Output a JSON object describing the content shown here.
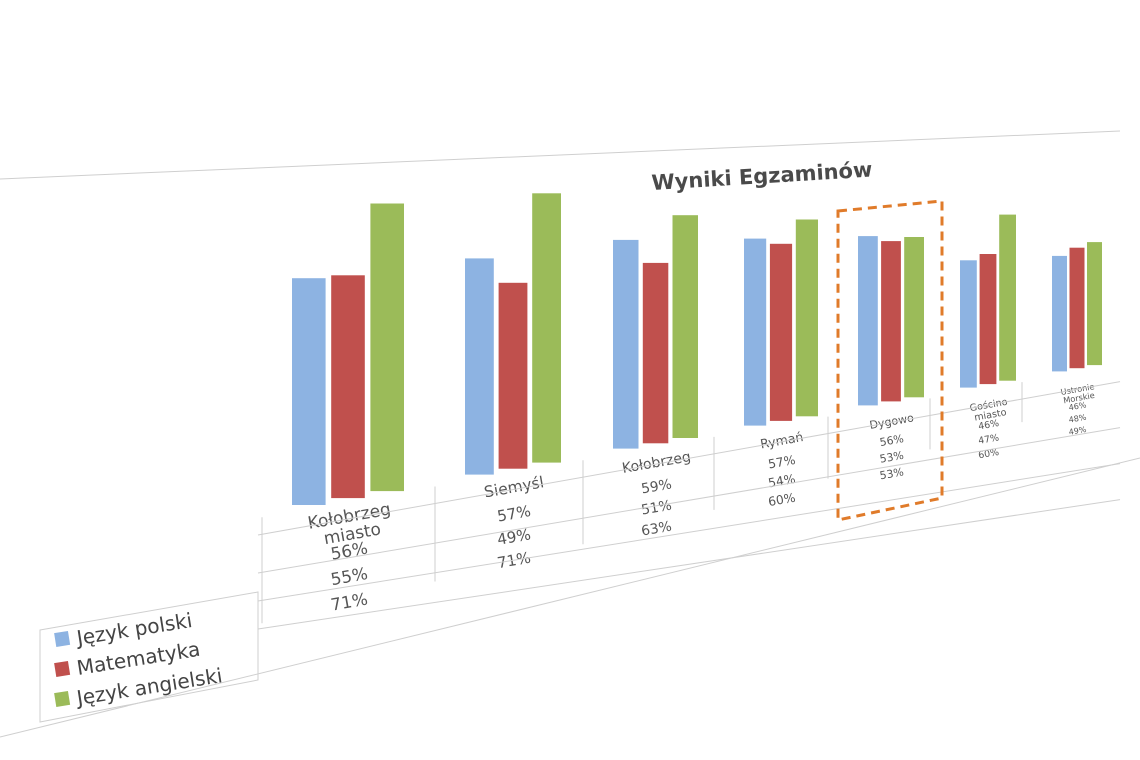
{
  "chart_data": {
    "type": "bar",
    "title": "Wyniki Egzaminów",
    "categories": [
      [
        "Kołobrzeg",
        "miasto"
      ],
      [
        "Siemyśl"
      ],
      [
        "Kołobrzeg"
      ],
      [
        "Rymań"
      ],
      [
        "Dygowo"
      ],
      [
        "Gościno",
        "miasto"
      ],
      [
        "Ustronie",
        "Morskie"
      ]
    ],
    "series": [
      {
        "name": "Język polski",
        "color": "#8db3e2",
        "values": [
          56,
          57,
          59,
          57,
          56,
          46,
          46
        ],
        "labels": [
          "56%",
          "57%",
          "59%",
          "57%",
          "56%",
          "46%",
          "46%"
        ]
      },
      {
        "name": "Matematyka",
        "color": "#c0504d",
        "values": [
          55,
          49,
          51,
          54,
          53,
          47,
          48
        ],
        "labels": [
          "55%",
          "49%",
          "51%",
          "54%",
          "53%",
          "47%",
          "48%"
        ]
      },
      {
        "name": "Język angielski",
        "color": "#9bbb59",
        "values": [
          71,
          71,
          63,
          60,
          53,
          60,
          49
        ],
        "labels": [
          "71%",
          "71%",
          "63%",
          "60%",
          "53%",
          "60%",
          "49%"
        ]
      }
    ],
    "legend_placement": "bottom-left (data table)",
    "data_table": true,
    "highlight": {
      "category_index": 4,
      "style": "dashed",
      "color": "#e07b2a"
    }
  }
}
